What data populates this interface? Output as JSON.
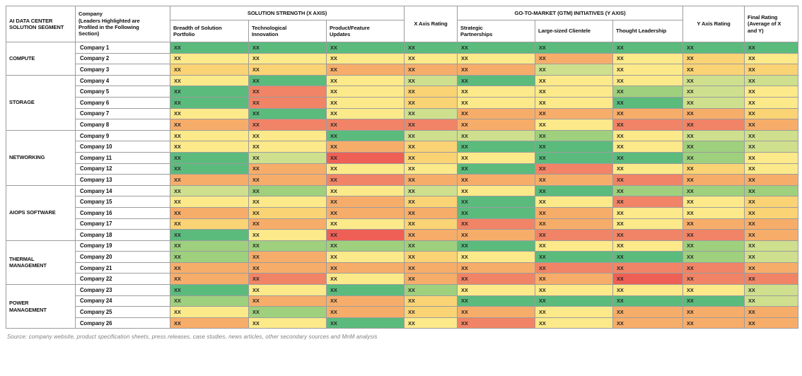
{
  "header": {
    "segment_col": "AI DATA CENTER\nSOLUTION SEGMENT",
    "company_col": "Company\n(Leaders Highlighted are\nProfiled in the Following\nSection)",
    "x_group": "SOLUTION STRENGTH (X AXIS)",
    "x_sub": [
      "Breadth of Solution\nPortfolio",
      "Technological\nInnovation",
      "Product/Feature\nUpdates"
    ],
    "x_rating": "X Axis Rating",
    "y_group": "GO-TO-MARKET (GTM) INITIATIVES (Y AXIS)",
    "y_sub": [
      "Strategic\nPartnerships",
      "Large-sized Clientele",
      "Thought Leadership"
    ],
    "y_rating": "Y Axis Rating",
    "final_rating": "Final Rating\n(Average of X\nand Y)"
  },
  "source": "Source: company website, product specification sheets, press releases, case studies, news articles, other secondary sources and MnM analysis",
  "chart_data": {
    "type": "heatmap",
    "cell_label": "XX",
    "columns": [
      "Breadth of Solution Portfolio",
      "Technological Innovation",
      "Product/Feature Updates",
      "X Axis Rating",
      "Strategic Partnerships",
      "Large-sized Clientele",
      "Thought Leadership",
      "Y Axis Rating",
      "Final Rating (Average of X and Y)"
    ],
    "palette": {
      "g": "#5BBB7D",
      "lg": "#9ED07E",
      "yg": "#CEE08D",
      "y": "#FCE98A",
      "am": "#FAD374",
      "o": "#F7AD6A",
      "s": "#F18466",
      "r": "#EE6056"
    },
    "palette_legend": {
      "g": "strong (green)",
      "lg": "light green",
      "yg": "yellow-green",
      "y": "yellow",
      "am": "amber",
      "o": "orange",
      "s": "salmon",
      "r": "weak (red)"
    },
    "segments": [
      {
        "label": "COMPUTE",
        "span": 3
      },
      {
        "label": "STORAGE",
        "span": 5
      },
      {
        "label": "NETWORKING",
        "span": 5
      },
      {
        "label": "AIOPS SOFTWARE",
        "span": 5
      },
      {
        "label": "THERMAL\nMANAGEMENT",
        "span": 4
      },
      {
        "label": "POWER\nMANAGEMENT",
        "span": 4
      }
    ],
    "rows": [
      {
        "company": "Company 1",
        "colors": [
          "g",
          "g",
          "g",
          "g",
          "g",
          "g",
          "g",
          "g",
          "g"
        ]
      },
      {
        "company": "Company 2",
        "colors": [
          "y",
          "y",
          "y",
          "y",
          "y",
          "o",
          "y",
          "am",
          "y"
        ]
      },
      {
        "company": "Company 3",
        "colors": [
          "am",
          "am",
          "o",
          "o",
          "o",
          "yg",
          "y",
          "am",
          "am"
        ]
      },
      {
        "company": "Company 4",
        "colors": [
          "y",
          "g",
          "y",
          "yg",
          "g",
          "y",
          "y",
          "yg",
          "yg"
        ]
      },
      {
        "company": "Company 5",
        "colors": [
          "g",
          "s",
          "y",
          "am",
          "y",
          "y",
          "lg",
          "yg",
          "y"
        ]
      },
      {
        "company": "Company 6",
        "colors": [
          "g",
          "s",
          "y",
          "am",
          "y",
          "y",
          "g",
          "yg",
          "y"
        ]
      },
      {
        "company": "Company 7",
        "colors": [
          "y",
          "g",
          "y",
          "yg",
          "o",
          "o",
          "o",
          "o",
          "am"
        ]
      },
      {
        "company": "Company 8",
        "colors": [
          "o",
          "s",
          "s",
          "s",
          "o",
          "y",
          "s",
          "s",
          "o"
        ]
      },
      {
        "company": "Company 9",
        "colors": [
          "y",
          "y",
          "g",
          "yg",
          "yg",
          "lg",
          "y",
          "yg",
          "yg"
        ]
      },
      {
        "company": "Company 10",
        "colors": [
          "y",
          "y",
          "o",
          "am",
          "g",
          "g",
          "y",
          "lg",
          "yg"
        ]
      },
      {
        "company": "Company 11",
        "colors": [
          "g",
          "yg",
          "r",
          "am",
          "y",
          "g",
          "g",
          "lg",
          "y"
        ]
      },
      {
        "company": "Company 12",
        "colors": [
          "g",
          "o",
          "y",
          "y",
          "g",
          "s",
          "y",
          "am",
          "y"
        ]
      },
      {
        "company": "Company 13",
        "colors": [
          "o",
          "o",
          "s",
          "o",
          "o",
          "o",
          "s",
          "o",
          "o"
        ]
      },
      {
        "company": "Company 14",
        "colors": [
          "yg",
          "lg",
          "y",
          "yg",
          "y",
          "g",
          "lg",
          "lg",
          "lg"
        ]
      },
      {
        "company": "Company 15",
        "colors": [
          "y",
          "y",
          "o",
          "am",
          "g",
          "y",
          "s",
          "y",
          "am"
        ]
      },
      {
        "company": "Company 16",
        "colors": [
          "o",
          "am",
          "o",
          "o",
          "g",
          "o",
          "y",
          "y",
          "am"
        ]
      },
      {
        "company": "Company 17",
        "colors": [
          "am",
          "o",
          "y",
          "am",
          "s",
          "o",
          "y",
          "o",
          "o"
        ]
      },
      {
        "company": "Company 18",
        "colors": [
          "g",
          "y",
          "r",
          "o",
          "o",
          "s",
          "s",
          "s",
          "o"
        ]
      },
      {
        "company": "Company 19",
        "colors": [
          "lg",
          "lg",
          "lg",
          "lg",
          "g",
          "y",
          "y",
          "lg",
          "yg"
        ]
      },
      {
        "company": "Company 20",
        "colors": [
          "lg",
          "o",
          "y",
          "am",
          "y",
          "g",
          "g",
          "lg",
          "yg"
        ]
      },
      {
        "company": "Company 21",
        "colors": [
          "o",
          "o",
          "o",
          "o",
          "o",
          "s",
          "s",
          "s",
          "o"
        ]
      },
      {
        "company": "Company 22",
        "colors": [
          "o",
          "s",
          "y",
          "o",
          "s",
          "o",
          "r",
          "s",
          "s"
        ]
      },
      {
        "company": "Company 23",
        "colors": [
          "g",
          "y",
          "g",
          "lg",
          "y",
          "y",
          "y",
          "y",
          "yg"
        ]
      },
      {
        "company": "Company 24",
        "colors": [
          "lg",
          "o",
          "o",
          "am",
          "g",
          "g",
          "g",
          "g",
          "yg"
        ]
      },
      {
        "company": "Company 25",
        "colors": [
          "y",
          "lg",
          "o",
          "am",
          "o",
          "y",
          "o",
          "o",
          "o"
        ]
      },
      {
        "company": "Company 26",
        "colors": [
          "o",
          "y",
          "g",
          "y",
          "s",
          "y",
          "o",
          "o",
          "o"
        ]
      }
    ]
  }
}
